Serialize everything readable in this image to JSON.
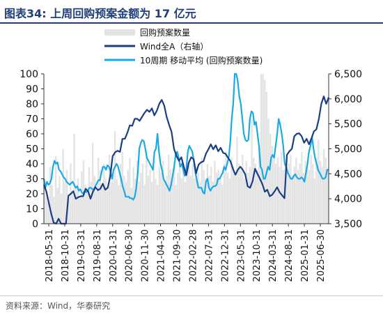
{
  "header": {
    "title": "图表34:   上周回购预案金额为 17 亿元"
  },
  "footer": {
    "source": "资料来源：Wind，华泰研究"
  },
  "colors": {
    "bars": "#e3e3e3",
    "wind": "#1b3d82",
    "ma10": "#1ba9e6",
    "title": "#1f3e7a"
  },
  "chart_data": {
    "type": "bar",
    "legend": [
      "回购预案数量",
      "Wind全A（右轴）",
      "10周期 移动平均 (回购预案数量)"
    ],
    "legend_position": "top-center",
    "y_left": {
      "range": [
        0,
        100
      ],
      "ticks": [
        "0",
        "10",
        "20",
        "30",
        "40",
        "50",
        "60",
        "70",
        "80",
        "90",
        "100"
      ]
    },
    "y_right": {
      "range": [
        3500,
        6500
      ],
      "ticks": [
        "3,500",
        "4,000",
        "4,500",
        "5,000",
        "5,500",
        "6,000",
        "6,500"
      ]
    },
    "x_tick_labels": [
      "2018-05-31",
      "2018-10-31",
      "2019-03-31",
      "2019-08-31",
      "2020-01-31",
      "2020-06-30",
      "2020-11-30",
      "2021-04-30",
      "2021-09-30",
      "2022-02-28",
      "2022-07-31",
      "2022-12-31",
      "2023-05-31",
      "2023-10-31",
      "2024-03-31",
      "2024-08-31",
      "2025-01-31",
      "2025-06-30"
    ],
    "series": [
      {
        "name": "回购预案数量",
        "type": "bar",
        "axis": "left",
        "values": [
          30,
          22,
          14,
          38,
          26,
          18,
          45,
          24,
          32,
          20,
          50,
          28,
          36,
          16,
          40,
          22,
          60,
          24,
          30,
          18,
          35,
          42,
          26,
          20,
          38,
          28,
          54,
          32,
          22,
          44,
          36,
          26,
          40,
          30,
          24,
          46,
          28,
          34,
          62,
          30,
          26,
          40,
          48,
          32,
          28,
          36,
          44,
          24,
          38,
          30,
          42,
          28,
          34,
          40,
          26,
          48,
          32,
          36,
          28,
          44,
          30,
          26,
          38,
          34,
          42,
          28,
          32,
          46,
          36,
          30,
          40,
          26,
          34,
          44,
          30,
          38,
          28,
          36,
          42,
          32,
          40,
          30,
          38,
          34,
          28,
          44,
          36,
          30,
          40,
          32,
          38,
          28,
          42,
          34,
          36,
          30,
          26,
          40,
          48,
          34,
          30,
          44,
          38,
          32,
          58,
          40,
          36,
          46,
          30,
          42,
          34,
          38,
          70,
          44,
          40,
          36,
          52,
          100,
          100,
          96,
          88,
          70,
          60,
          52,
          46,
          40,
          44,
          38,
          48,
          36,
          42,
          34,
          40,
          46,
          32,
          38,
          44,
          36,
          40,
          48,
          34,
          42,
          38,
          36,
          46,
          40,
          30,
          44,
          56,
          42,
          38,
          50,
          44,
          36
        ]
      },
      {
        "name": "Wind全A（右轴）",
        "type": "line",
        "axis": "right",
        "values": [
          4280,
          4150,
          3920,
          3700,
          3520,
          3450,
          3600,
          3400,
          3500,
          3420,
          4060,
          4100,
          4150,
          4000,
          4030,
          4050,
          4050,
          4200,
          4150,
          4000,
          4140,
          4230,
          4170,
          4200,
          4300,
          4180,
          4220,
          4440,
          4850,
          4930,
          4960,
          4940,
          5200,
          5200,
          5320,
          5470,
          5460,
          5600,
          5600,
          5560,
          5640,
          5720,
          5780,
          5740,
          5810,
          5670,
          5760,
          5900,
          5980,
          5870,
          5640,
          5480,
          5340,
          5000,
          4860,
          4760,
          4830,
          4640,
          4470,
          4720,
          4830,
          4790,
          4510,
          4680,
          4730,
          4750,
          4900,
          4990,
          5090,
          4990,
          5070,
          4950,
          5020,
          4920,
          4900,
          4820,
          4750,
          4600,
          4480,
          4580,
          4640,
          4580,
          4490,
          4250,
          4220,
          4350,
          4600,
          4500,
          4400,
          4290,
          4140,
          4180,
          4050,
          4080,
          4150,
          4230,
          4130,
          4070,
          4010,
          4880,
          4950,
          5000,
          5250,
          5300,
          5310,
          5250,
          5120,
          5200,
          5090,
          5210,
          5350,
          5390,
          5600,
          5900,
          6050,
          5900,
          6030
        ]
      },
      {
        "name": "10周期 移动平均 (回购预案数量)",
        "type": "line",
        "axis": "left",
        "values": [
          30,
          24,
          28,
          26,
          27,
          30,
          38,
          42,
          40,
          41,
          36,
          35,
          33,
          31,
          30,
          28,
          27,
          26,
          27,
          28,
          26,
          24,
          25,
          22,
          23,
          21,
          20,
          22,
          21,
          22,
          24,
          24,
          23,
          23,
          25,
          27,
          29,
          29,
          34,
          38,
          38,
          36,
          39,
          38,
          35,
          30,
          36,
          38,
          40,
          38,
          34,
          30,
          25,
          22,
          18,
          18,
          18,
          17,
          17,
          16,
          18,
          24,
          34,
          50,
          54,
          56,
          55,
          50,
          44,
          42,
          40,
          38,
          36,
          48,
          50,
          60,
          48,
          40,
          36,
          30,
          28,
          26,
          24,
          22,
          26,
          32,
          38,
          46,
          48,
          44,
          38,
          40,
          36,
          32,
          36,
          48,
          52,
          50,
          48,
          42,
          34,
          29,
          24,
          24,
          24,
          21,
          20,
          28,
          30,
          24,
          22,
          24,
          25,
          25,
          26,
          30,
          30,
          32,
          34,
          38,
          36,
          40,
          44,
          54,
          70,
          80,
          100,
          100,
          95,
          85,
          80,
          70,
          60,
          56,
          55,
          56,
          70,
          75,
          74,
          66,
          68,
          60,
          52,
          38,
          36,
          30,
          30,
          34,
          38,
          36,
          44,
          46,
          44,
          52,
          60,
          70,
          66,
          60,
          52,
          40,
          38,
          34,
          32,
          30,
          30,
          32,
          33,
          31,
          30,
          30,
          31,
          30,
          28,
          34,
          40,
          48,
          52,
          58,
          50,
          44,
          40,
          36,
          34,
          32,
          30,
          30,
          31,
          36,
          36
        ]
      }
    ]
  }
}
